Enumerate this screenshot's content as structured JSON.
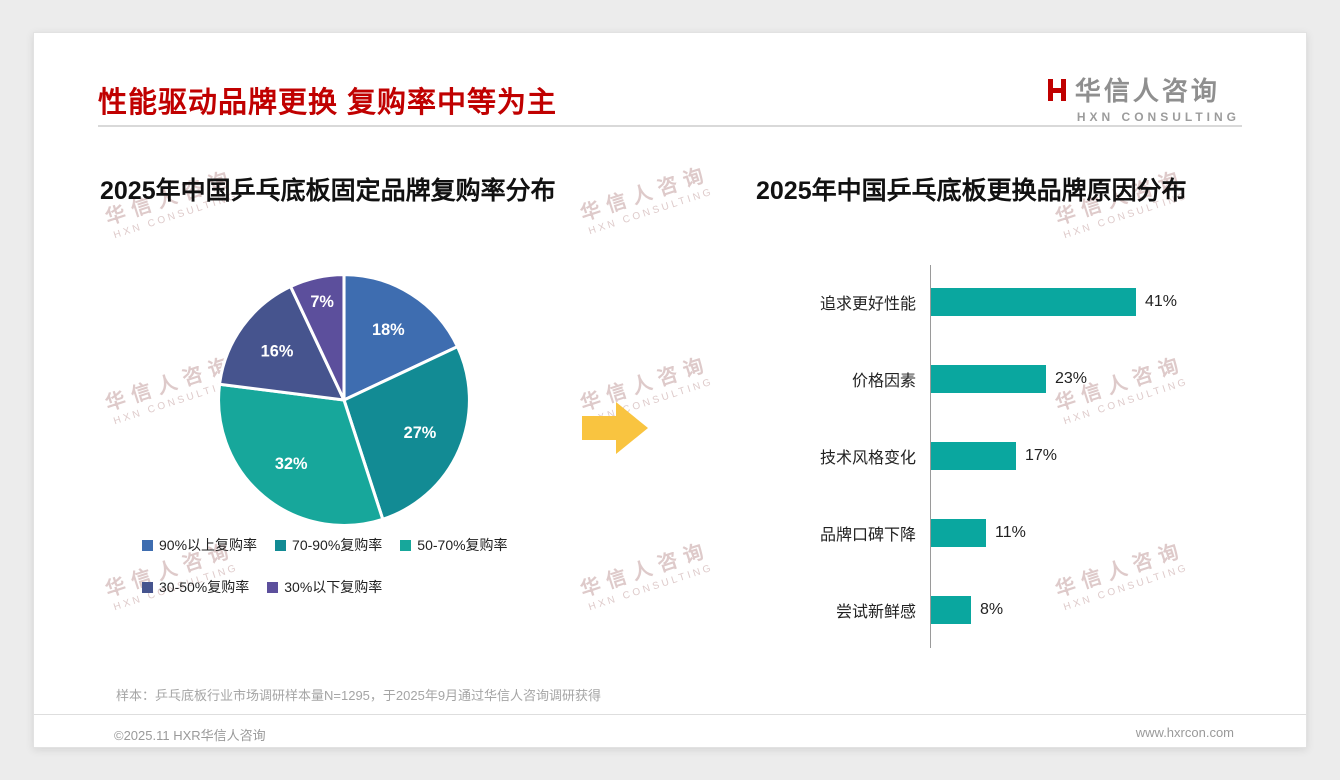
{
  "page": {
    "title": "性能驱动品牌更换 复购率中等为主",
    "logo": {
      "name": "华信人咨询",
      "sub": "HXN CONSULTING"
    },
    "watermark": {
      "line1": "华信人咨询",
      "line2": "HXN CONSULTING"
    },
    "footnote": "样本：乒乓底板行业市场调研样本量N=1295，于2025年9月通过华信人咨询调研获得",
    "footer_left": "©2025.11 HXR华信人咨询",
    "footer_right": "www.hxrcon.com"
  },
  "chart_data": [
    {
      "type": "pie",
      "title": "2025年中国乒乓底板固定品牌复购率分布",
      "labels": [
        "90%以上复购率",
        "70-90%复购率",
        "50-70%复购率",
        "30-50%复购率",
        "30%以下复购率"
      ],
      "values": [
        18,
        27,
        32,
        16,
        7
      ],
      "data_labels": [
        "18%",
        "27%",
        "32%",
        "16%",
        "7%"
      ],
      "colors": [
        "#3e6db0",
        "#128b94",
        "#17a79b",
        "#46548e",
        "#5c4f9c"
      ],
      "legend_position": "bottom"
    },
    {
      "type": "bar",
      "orientation": "horizontal",
      "title": "2025年中国乒乓底板更换品牌原因分布",
      "categories": [
        "追求更好性能",
        "价格因素",
        "技术风格变化",
        "品牌口碑下降",
        "尝试新鲜感"
      ],
      "values": [
        41,
        23,
        17,
        11,
        8
      ],
      "value_labels": [
        "41%",
        "23%",
        "17%",
        "11%",
        "8%"
      ],
      "bar_color": "#0aa79f",
      "xlim": [
        0,
        45
      ],
      "grid": false,
      "legend_position": "none"
    }
  ]
}
